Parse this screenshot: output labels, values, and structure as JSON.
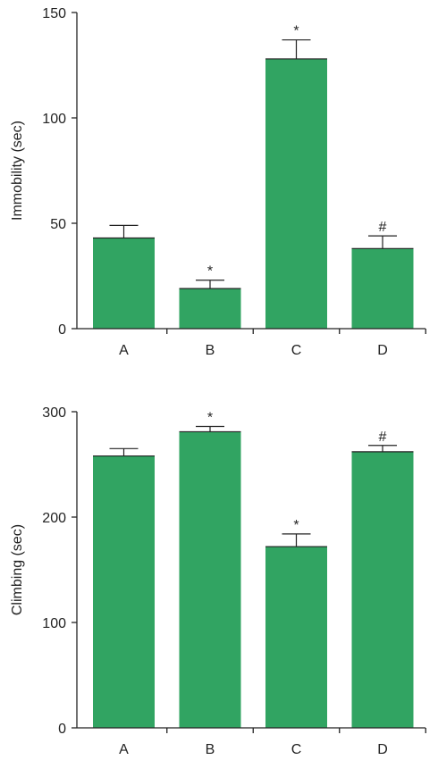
{
  "colors": {
    "bar": "#31a462",
    "axis": "#222222"
  },
  "chart_data": [
    {
      "type": "bar",
      "title": "",
      "xlabel": "",
      "ylabel": "Immobility (sec)",
      "categories": [
        "A",
        "B",
        "C",
        "D"
      ],
      "values": [
        43,
        19,
        128,
        38
      ],
      "error": [
        6,
        4,
        9,
        6
      ],
      "annotations": [
        "",
        "*",
        "*",
        "#"
      ],
      "ylim": [
        0,
        150
      ],
      "yticks": [
        0,
        50,
        100,
        150
      ],
      "grid": false,
      "legend": "none"
    },
    {
      "type": "bar",
      "title": "",
      "xlabel": "",
      "ylabel": "Climbing (sec)",
      "categories": [
        "A",
        "B",
        "C",
        "D"
      ],
      "values": [
        258,
        281,
        172,
        262
      ],
      "error": [
        7,
        5,
        12,
        6
      ],
      "annotations": [
        "",
        "*",
        "*",
        "#"
      ],
      "ylim": [
        0,
        300
      ],
      "yticks": [
        0,
        100,
        200,
        300
      ],
      "grid": false,
      "legend": "none"
    }
  ]
}
